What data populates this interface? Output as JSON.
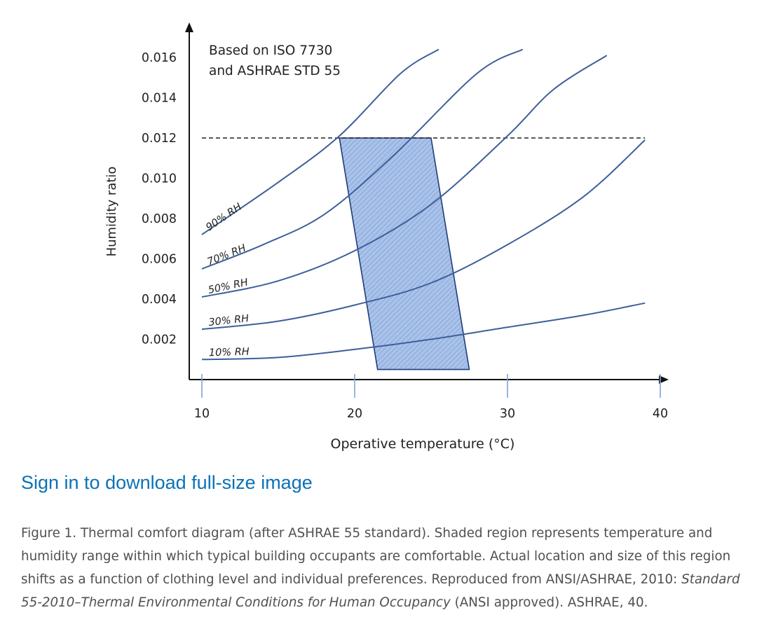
{
  "chart_data": {
    "type": "line",
    "xlabel": "Operative temperature (°C)",
    "ylabel": "Humidity ratio",
    "xlim": [
      10,
      40
    ],
    "ylim": [
      0,
      0.017
    ],
    "x_ticks": [
      "10",
      "20",
      "30",
      "40"
    ],
    "y_ticks": [
      "0.002",
      "0.004",
      "0.006",
      "0.008",
      "0.010",
      "0.012",
      "0.014",
      "0.016"
    ],
    "annotation_lines": [
      "Based on ISO 7730",
      "and ASHRAE STD 55"
    ],
    "line_color": "#3e5f9a",
    "region_color": "#a9c2ea",
    "series": [
      {
        "name": "90% RH",
        "points": [
          [
            10,
            0.0072
          ],
          [
            15,
            0.0098
          ],
          [
            19,
            0.0121
          ],
          [
            23,
            0.0152
          ],
          [
            25.5,
            0.0164
          ]
        ]
      },
      {
        "name": "70% RH",
        "points": [
          [
            10,
            0.0055
          ],
          [
            14,
            0.0067
          ],
          [
            18,
            0.0082
          ],
          [
            22.5,
            0.0111
          ],
          [
            28,
            0.0152
          ],
          [
            31,
            0.0164
          ]
        ]
      },
      {
        "name": "50% RH",
        "points": [
          [
            10,
            0.0041
          ],
          [
            15,
            0.0049
          ],
          [
            20,
            0.0064
          ],
          [
            25,
            0.0087
          ],
          [
            30,
            0.0121
          ],
          [
            33,
            0.0144
          ],
          [
            36.5,
            0.0161
          ]
        ]
      },
      {
        "name": "30% RH",
        "points": [
          [
            10,
            0.0025
          ],
          [
            15,
            0.0029
          ],
          [
            20,
            0.0037
          ],
          [
            25,
            0.0048
          ],
          [
            30,
            0.0067
          ],
          [
            35,
            0.0091
          ],
          [
            39,
            0.0119
          ]
        ]
      },
      {
        "name": "10% RH",
        "points": [
          [
            10,
            0.001
          ],
          [
            15,
            0.0011
          ],
          [
            20,
            0.0015
          ],
          [
            25,
            0.002
          ],
          [
            30,
            0.0026
          ],
          [
            35,
            0.0032
          ],
          [
            39,
            0.0038
          ]
        ]
      }
    ],
    "limit_line": {
      "y": 0.012,
      "x_range": [
        10,
        39
      ],
      "style": "dashed"
    },
    "comfort_region": [
      [
        19,
        0.012
      ],
      [
        25,
        0.012
      ],
      [
        27.5,
        0.0005
      ],
      [
        21.5,
        0.0005
      ]
    ]
  },
  "link": {
    "label": "Sign in to download full-size image"
  },
  "caption": {
    "prefix": "Figure 1. Thermal comfort diagram (after ASHRAE 55 standard). Shaded region represents temperature and humidity range within which typical building occupants are comfortable. Actual location and size of this region shifts as a function of clothing level and individual preferences. Reproduced from ANSI/ASHRAE, 2010: ",
    "italic": "Standard 55-2010–Thermal Environmental Conditions for Human Occupancy",
    "suffix": " (ANSI approved). ASHRAE, 40."
  }
}
